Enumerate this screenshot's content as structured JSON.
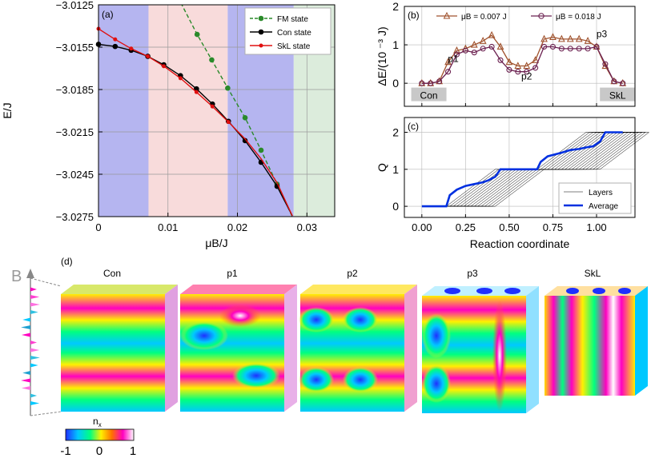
{
  "chart_data": [
    {
      "panel": "(a)",
      "type": "line",
      "xlabel": "μB/J",
      "ylabel": "E/J",
      "xlim": [
        0,
        0.034
      ],
      "ylim": [
        -3.0275,
        -3.0125
      ],
      "xticks": [
        0,
        0.01,
        0.02,
        0.03
      ],
      "xtick_labels": [
        "0",
        "0.01",
        "0.02",
        "0.03"
      ],
      "yticks": [
        -3.0125,
        -3.0155,
        -3.0185,
        -3.0215,
        -3.0245,
        -3.0275
      ],
      "ytick_labels": [
        "−3.0125",
        "−3.0155",
        "−3.0185",
        "−3.0215",
        "−3.0245",
        "−3.0275"
      ],
      "grid": true,
      "legend_position": "top-right",
      "regions": [
        {
          "from": 0,
          "to": 0.0072,
          "color": "#b5b5f0"
        },
        {
          "from": 0.0072,
          "to": 0.0186,
          "color": "#f8dbdb"
        },
        {
          "from": 0.0186,
          "to": 0.0281,
          "color": "#b5b5f0"
        },
        {
          "from": 0.0281,
          "to": 0.034,
          "color": "#dcecdc"
        }
      ],
      "series": [
        {
          "name": "FM state",
          "color": "#2a8a2a",
          "dashed": true,
          "marker": "circle",
          "x": [
            0.0108,
            0.012,
            0.0142,
            0.0163,
            0.0186,
            0.0211,
            0.0234,
            0.0257,
            0.0279
          ],
          "y": [
            -3.0111,
            -3.0125,
            -3.0146,
            -3.0164,
            -3.0184,
            -3.0205,
            -3.0228,
            -3.0252,
            -3.0275
          ],
          "marker_x": [
            0.0142,
            0.0163,
            0.0186,
            0.0211,
            0.0234,
            0.0257
          ]
        },
        {
          "name": "Con state",
          "color": "#000000",
          "dashed": false,
          "marker": "circle",
          "x": [
            0,
            0.0024,
            0.0047,
            0.0071,
            0.0094,
            0.0118,
            0.0141,
            0.0164,
            0.0187,
            0.0211,
            0.0234,
            0.0257,
            0.0279
          ],
          "y": [
            -3.0153,
            -3.01545,
            -3.01572,
            -3.01615,
            -3.01675,
            -3.01752,
            -3.01845,
            -3.01953,
            -3.02075,
            -3.02212,
            -3.02365,
            -3.02535,
            -3.02745
          ],
          "marker_x": [
            0,
            0.0024,
            0.0047,
            0.0071,
            0.0094,
            0.0118,
            0.0141,
            0.0164,
            0.0187,
            0.0211,
            0.0234,
            0.0257
          ]
        },
        {
          "name": "SkL state",
          "color": "#e01010",
          "dashed": false,
          "marker": "dot",
          "x": [
            0,
            0.0024,
            0.0047,
            0.0071,
            0.0094,
            0.0118,
            0.0141,
            0.0164,
            0.0187,
            0.0211,
            0.0234,
            0.0257,
            0.0279
          ],
          "y": [
            -3.0142,
            -3.01495,
            -3.0156,
            -3.01615,
            -3.01685,
            -3.0177,
            -3.01868,
            -3.0197,
            -3.0208,
            -3.022,
            -3.0234,
            -3.0251,
            -3.02745
          ],
          "marker_x": [
            0,
            0.0024,
            0.0047,
            0.0071,
            0.0094,
            0.0118,
            0.0141,
            0.0164,
            0.0187
          ]
        }
      ]
    },
    {
      "panel": "(b)",
      "type": "line",
      "xlabel": "",
      "ylabel": "ΔE/(10  ⁻³ J)",
      "xlim": [
        -0.1,
        1.22
      ],
      "ylim": [
        -0.6,
        2
      ],
      "yticks": [
        0,
        1,
        2
      ],
      "grid": true,
      "legend_position": "top",
      "series": [
        {
          "name": "μB = 0.007   J",
          "color": "#a0522d",
          "marker": "triangle",
          "x": [
            0,
            0.05,
            0.1,
            0.15,
            0.2,
            0.25,
            0.3,
            0.35,
            0.4,
            0.45,
            0.5,
            0.55,
            0.6,
            0.65,
            0.7,
            0.75,
            0.8,
            0.85,
            0.9,
            0.95,
            1.0,
            1.05,
            1.1,
            1.15
          ],
          "y": [
            0,
            0,
            0.05,
            0.55,
            0.85,
            0.9,
            1.0,
            1.1,
            1.25,
            0.95,
            0.55,
            0.45,
            0.45,
            0.6,
            1.15,
            1.2,
            1.15,
            1.15,
            1.15,
            1.1,
            0.95,
            0.45,
            0.05,
            0
          ]
        },
        {
          "name": "μB = 0.018   J",
          "color": "#6b2050",
          "marker": "circle",
          "x": [
            0,
            0.05,
            0.1,
            0.15,
            0.2,
            0.25,
            0.3,
            0.35,
            0.4,
            0.45,
            0.5,
            0.55,
            0.6,
            0.65,
            0.7,
            0.75,
            0.8,
            0.85,
            0.9,
            0.95,
            1.0,
            1.05,
            1.1,
            1.15
          ],
          "y": [
            0,
            0,
            0.05,
            0.3,
            0.75,
            0.85,
            0.8,
            0.9,
            0.95,
            0.6,
            0.35,
            0.3,
            0.3,
            0.4,
            0.95,
            0.95,
            0.9,
            0.9,
            0.9,
            0.9,
            0.95,
            0.5,
            0.05,
            0
          ]
        }
      ],
      "annotations": [
        {
          "text": "p1",
          "x": 0.18,
          "y": 0.55
        },
        {
          "text": "p2",
          "x": 0.6,
          "y": 0.1
        },
        {
          "text": "p3",
          "x": 1.03,
          "y": 1.2
        }
      ],
      "box_labels": [
        {
          "text": "Con",
          "x": 0.04,
          "y": -0.3
        },
        {
          "text": "SkL",
          "x": 1.12,
          "y": -0.3
        }
      ]
    },
    {
      "panel": "(c)",
      "type": "line",
      "xlabel": "Reaction coordinate",
      "ylabel": "Q",
      "xlim": [
        -0.1,
        1.22
      ],
      "ylim": [
        -0.3,
        2.4
      ],
      "xticks": [
        0,
        0.25,
        0.5,
        0.75,
        1.0
      ],
      "xtick_labels": [
        "0.00",
        "0.25",
        "0.50",
        "0.75",
        "1.00"
      ],
      "yticks": [
        0,
        1,
        2
      ],
      "grid": true,
      "legend_position": "bottom-right",
      "series": [
        {
          "name": "Average",
          "color": "#0030e0",
          "x": [
            0,
            0.14,
            0.16,
            0.2,
            0.25,
            0.3,
            0.35,
            0.38,
            0.42,
            0.45,
            0.5,
            0.6,
            0.66,
            0.68,
            0.72,
            0.8,
            0.85,
            0.9,
            0.95,
            0.98,
            1.02,
            1.05,
            1.15
          ],
          "y": [
            0,
            0,
            0.3,
            0.45,
            0.55,
            0.6,
            0.65,
            0.7,
            0.8,
            1.0,
            1.0,
            1.0,
            1.0,
            1.2,
            1.35,
            1.45,
            1.52,
            1.55,
            1.6,
            1.62,
            1.75,
            2.0,
            2.0
          ]
        },
        {
          "name": "Layers",
          "color": "#000000",
          "description": "thin lines: each layer jumps 0→1 at a transition step and 1→2 at another",
          "steps1": [
            0.15,
            0.17,
            0.19,
            0.21,
            0.23,
            0.25,
            0.27,
            0.29,
            0.31,
            0.33,
            0.35,
            0.37,
            0.39,
            0.41,
            0.43
          ],
          "steps2": [
            0.67,
            0.69,
            0.71,
            0.73,
            0.75,
            0.77,
            0.79,
            0.81,
            0.83,
            0.85,
            0.87,
            0.89,
            0.91,
            0.93,
            0.95,
            0.97,
            0.99,
            1.01,
            1.03
          ]
        }
      ]
    }
  ],
  "panel_d": {
    "label": "(d)",
    "titles": [
      "Con",
      "p1",
      "p2",
      "p3",
      "SkL"
    ],
    "field_label": "B",
    "colorbar": {
      "title": "n",
      "subscript": "x",
      "ticks": [
        "-1",
        "0",
        "1"
      ],
      "colors": [
        "#1f30ff",
        "#00c8ff",
        "#00ff80",
        "#fff000",
        "#ff7000",
        "#ff00c0",
        "#ffffff"
      ]
    }
  }
}
